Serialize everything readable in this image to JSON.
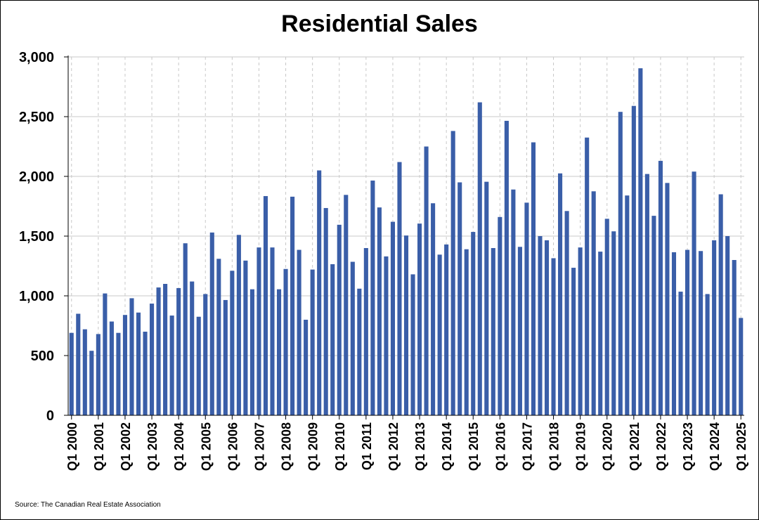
{
  "chart_data": {
    "type": "bar",
    "title": "Residential Sales",
    "source": "Source: The Canadian Real Estate Association",
    "xlabel": "",
    "ylabel": "",
    "ylim": [
      0,
      3000
    ],
    "yticks": [
      0,
      500,
      1000,
      1500,
      2000,
      2500,
      3000
    ],
    "ytick_labels": [
      "0",
      "500",
      "1,000",
      "1,500",
      "2,000",
      "2,500",
      "3,000"
    ],
    "xtick_labels": [
      "Q1 2000",
      "Q1 2001",
      "Q1 2002",
      "Q1 2003",
      "Q1 2004",
      "Q1 2005",
      "Q1 2006",
      "Q1 2007",
      "Q1 2008",
      "Q1 2009",
      "Q1 2010",
      "Q1 2011",
      "Q1 2012",
      "Q1 2013",
      "Q1 2014",
      "Q1 2015",
      "Q1 2016",
      "Q1 2017",
      "Q1 2018",
      "Q1 2019",
      "Q1 2020",
      "Q1 2021",
      "Q1 2022",
      "Q1 2023",
      "Q1 2024",
      "Q1 2025"
    ],
    "grid": true,
    "bar_color": "#3a5ea8",
    "categories": [
      "Q1 2000",
      "Q2 2000",
      "Q3 2000",
      "Q4 2000",
      "Q1 2001",
      "Q2 2001",
      "Q3 2001",
      "Q4 2001",
      "Q1 2002",
      "Q2 2002",
      "Q3 2002",
      "Q4 2002",
      "Q1 2003",
      "Q2 2003",
      "Q3 2003",
      "Q4 2003",
      "Q1 2004",
      "Q2 2004",
      "Q3 2004",
      "Q4 2004",
      "Q1 2005",
      "Q2 2005",
      "Q3 2005",
      "Q4 2005",
      "Q1 2006",
      "Q2 2006",
      "Q3 2006",
      "Q4 2006",
      "Q1 2007",
      "Q2 2007",
      "Q3 2007",
      "Q4 2007",
      "Q1 2008",
      "Q2 2008",
      "Q3 2008",
      "Q4 2008",
      "Q1 2009",
      "Q2 2009",
      "Q3 2009",
      "Q4 2009",
      "Q1 2010",
      "Q2 2010",
      "Q3 2010",
      "Q4 2010",
      "Q1 2011",
      "Q2 2011",
      "Q3 2011",
      "Q4 2011",
      "Q1 2012",
      "Q2 2012",
      "Q3 2012",
      "Q4 2012",
      "Q1 2013",
      "Q2 2013",
      "Q3 2013",
      "Q4 2013",
      "Q1 2014",
      "Q2 2014",
      "Q3 2014",
      "Q4 2014",
      "Q1 2015",
      "Q2 2015",
      "Q3 2015",
      "Q4 2015",
      "Q1 2016",
      "Q2 2016",
      "Q3 2016",
      "Q4 2016",
      "Q1 2017",
      "Q2 2017",
      "Q3 2017",
      "Q4 2017",
      "Q1 2018",
      "Q2 2018",
      "Q3 2018",
      "Q4 2018",
      "Q1 2019",
      "Q2 2019",
      "Q3 2019",
      "Q4 2019",
      "Q1 2020",
      "Q2 2020",
      "Q3 2020",
      "Q4 2020",
      "Q1 2021",
      "Q2 2021",
      "Q3 2021",
      "Q4 2021",
      "Q1 2022",
      "Q2 2022",
      "Q3 2022",
      "Q4 2022",
      "Q1 2023",
      "Q2 2023",
      "Q3 2023",
      "Q4 2023",
      "Q1 2024",
      "Q2 2024",
      "Q3 2024",
      "Q4 2024",
      "Q1 2025"
    ],
    "values": [
      690,
      850,
      720,
      540,
      680,
      1020,
      785,
      690,
      840,
      980,
      860,
      700,
      935,
      1070,
      1100,
      835,
      1065,
      1440,
      1120,
      825,
      1015,
      1530,
      1310,
      965,
      1210,
      1510,
      1295,
      1055,
      1405,
      1835,
      1405,
      1055,
      1225,
      1830,
      1385,
      800,
      1220,
      2050,
      1735,
      1265,
      1595,
      1845,
      1285,
      1060,
      1400,
      1965,
      1740,
      1330,
      1620,
      2120,
      1505,
      1180,
      1605,
      2250,
      1775,
      1345,
      1430,
      2380,
      1950,
      1390,
      1535,
      2620,
      1955,
      1400,
      1660,
      2465,
      1890,
      1410,
      1780,
      2285,
      1500,
      1465,
      1315,
      2025,
      1710,
      1235,
      1405,
      2325,
      1875,
      1370,
      1645,
      1540,
      2540,
      1840,
      2590,
      2905,
      2020,
      1670,
      2130,
      1945,
      1365,
      1035,
      1385,
      2040,
      1375,
      1015,
      1465,
      1850,
      1500,
      1300,
      815
    ]
  }
}
